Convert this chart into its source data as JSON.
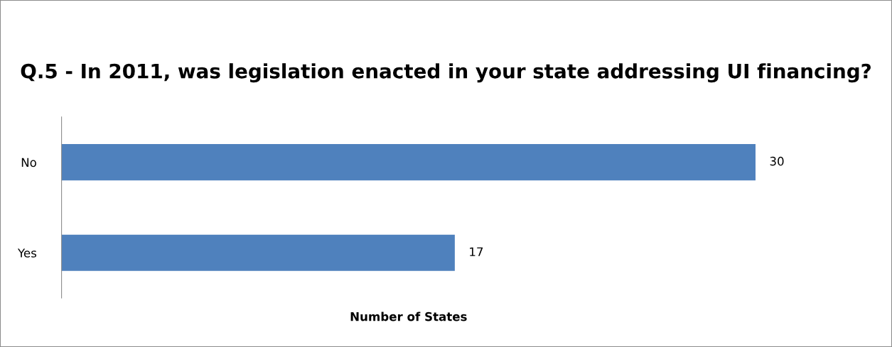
{
  "chart_data": {
    "type": "bar",
    "orientation": "horizontal",
    "title": "Q.5 - In 2011, was legislation enacted in your state addressing UI financing?",
    "xlabel": "Number of States",
    "categories": [
      "No",
      "Yes"
    ],
    "values": [
      30,
      17
    ],
    "color": "#4f81bd",
    "data_labels": true,
    "grid": false,
    "legend": false,
    "tick_labels": "y"
  }
}
